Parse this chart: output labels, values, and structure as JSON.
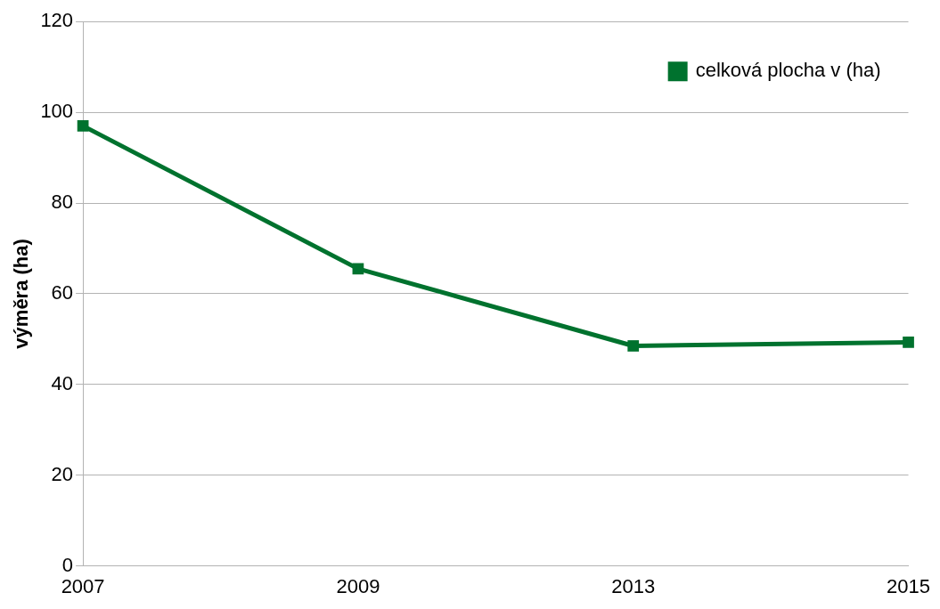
{
  "chart_data": {
    "type": "line",
    "ylabel": "výměra (ha)",
    "categories": [
      "2007",
      "2009",
      "2013",
      "2015"
    ],
    "series": [
      {
        "name": "celková plocha v (ha)",
        "color": "#00722e",
        "values": [
          97,
          65.5,
          48.5,
          49.3
        ]
      }
    ],
    "ylim": [
      0,
      120
    ],
    "yticks": [
      0,
      20,
      40,
      60,
      80,
      100,
      120
    ],
    "grid": "y",
    "legend": "top right",
    "marker": "square",
    "line_style": "solid"
  }
}
